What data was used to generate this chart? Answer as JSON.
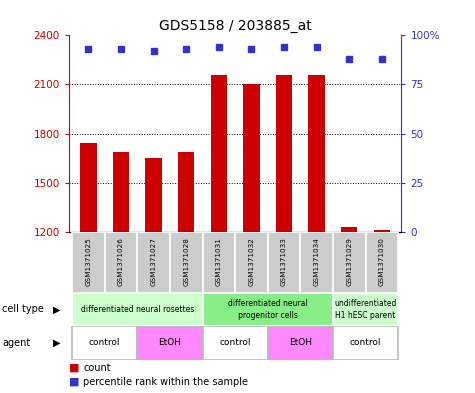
{
  "title": "GDS5158 / 203885_at",
  "samples": [
    "GSM1371025",
    "GSM1371026",
    "GSM1371027",
    "GSM1371028",
    "GSM1371031",
    "GSM1371032",
    "GSM1371033",
    "GSM1371034",
    "GSM1371029",
    "GSM1371030"
  ],
  "counts": [
    1740,
    1690,
    1650,
    1690,
    2160,
    2100,
    2160,
    2160,
    1230,
    1210
  ],
  "percentiles": [
    93,
    93,
    92,
    93,
    94,
    93,
    94,
    94,
    88,
    88
  ],
  "ylim_left": [
    1200,
    2400
  ],
  "ylim_right": [
    0,
    100
  ],
  "yticks_left": [
    1200,
    1500,
    1800,
    2100,
    2400
  ],
  "yticks_right": [
    0,
    25,
    50,
    75,
    100
  ],
  "ytick_right_labels": [
    "0",
    "25",
    "50",
    "75",
    "100%"
  ],
  "bar_color": "#cc0000",
  "dot_color": "#3333cc",
  "cell_type_groups": [
    {
      "label": "differentiated neural rosettes",
      "start": 0,
      "end": 4,
      "color": "#ccffcc"
    },
    {
      "label": "differentiated neural\nprogenitor cells",
      "start": 4,
      "end": 8,
      "color": "#88ee88"
    },
    {
      "label": "undifferentiated\nH1 hESC parent",
      "start": 8,
      "end": 10,
      "color": "#ccffcc"
    }
  ],
  "agent_groups": [
    {
      "label": "control",
      "start": 0,
      "end": 2,
      "color": "#ffffff"
    },
    {
      "label": "EtOH",
      "start": 2,
      "end": 4,
      "color": "#ff88ff"
    },
    {
      "label": "control",
      "start": 4,
      "end": 6,
      "color": "#ffffff"
    },
    {
      "label": "EtOH",
      "start": 6,
      "end": 8,
      "color": "#ff88ff"
    },
    {
      "label": "control",
      "start": 8,
      "end": 10,
      "color": "#ffffff"
    }
  ],
  "cell_type_label": "cell type",
  "agent_label": "agent",
  "legend_count_label": "count",
  "legend_percentile_label": "percentile rank within the sample",
  "bar_width": 0.5,
  "chart_facecolor": "#ffffff",
  "fig_facecolor": "#ffffff"
}
